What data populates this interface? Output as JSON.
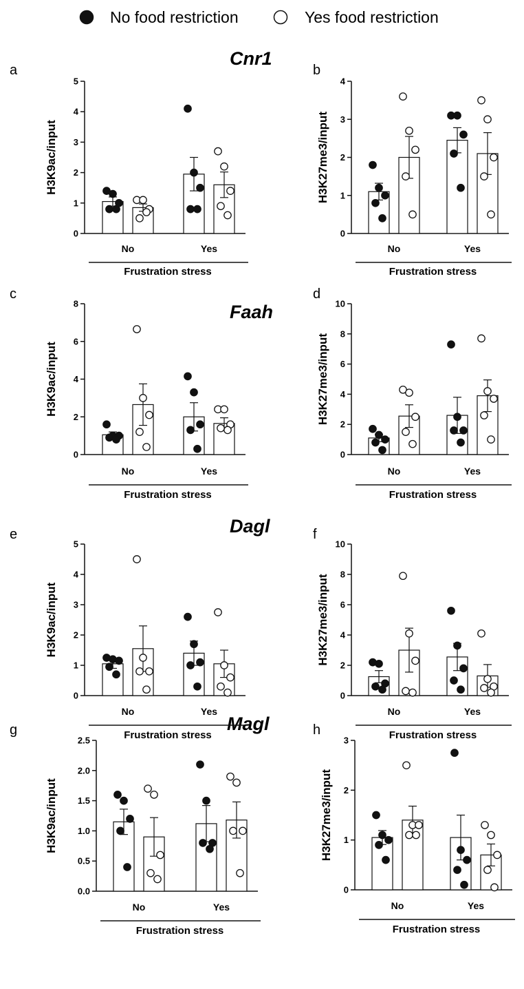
{
  "legend": {
    "no_label": "No food restriction",
    "yes_label": "Yes food restriction"
  },
  "genes": [
    "Cnr1",
    "Faah",
    "Dagl",
    "Magl"
  ],
  "chart_data": [
    {
      "panel": "a",
      "type": "bar",
      "ylabel": "H3K9ac/input",
      "xlabel": "Frustration stress",
      "categories": [
        "No",
        "Yes"
      ],
      "ylim": [
        0,
        5
      ],
      "yticks": [
        "0",
        "1",
        "2",
        "3",
        "4",
        "5"
      ],
      "series": [
        {
          "name": "No food restriction",
          "fill": "filled",
          "means": [
            1.05,
            1.95
          ],
          "sem": [
            0.15,
            0.55
          ],
          "points": [
            [
              1.4,
              1.3,
              1.0,
              0.8,
              0.8
            ],
            [
              4.1,
              2.0,
              1.5,
              0.8,
              0.8
            ]
          ]
        },
        {
          "name": "Yes food restriction",
          "fill": "open",
          "means": [
            0.85,
            1.6
          ],
          "sem": [
            0.12,
            0.42
          ],
          "points": [
            [
              1.1,
              1.1,
              0.8,
              0.5,
              0.7
            ],
            [
              2.7,
              2.2,
              1.4,
              0.9,
              0.6
            ]
          ]
        }
      ]
    },
    {
      "panel": "b",
      "type": "bar",
      "ylabel": "H3K27me3/input",
      "xlabel": "Frustration stress",
      "categories": [
        "No",
        "Yes"
      ],
      "ylim": [
        0,
        4
      ],
      "yticks": [
        "0",
        "1",
        "2",
        "3",
        "4"
      ],
      "series": [
        {
          "name": "No food restriction",
          "fill": "filled",
          "means": [
            1.1,
            2.45
          ],
          "sem": [
            0.22,
            0.33
          ],
          "points": [
            [
              1.8,
              1.2,
              1.0,
              0.8,
              0.4
            ],
            [
              3.1,
              3.1,
              2.6,
              2.1,
              1.2
            ]
          ]
        },
        {
          "name": "Yes food restriction",
          "fill": "open",
          "means": [
            2.0,
            2.1
          ],
          "sem": [
            0.55,
            0.55
          ],
          "points": [
            [
              3.6,
              2.7,
              2.2,
              1.5,
              0.5
            ],
            [
              3.5,
              3.0,
              2.0,
              1.5,
              0.5
            ]
          ]
        }
      ]
    },
    {
      "panel": "c",
      "type": "bar",
      "ylabel": "H3K9ac/input",
      "xlabel": "Frustration stress",
      "categories": [
        "No",
        "Yes"
      ],
      "ylim": [
        0,
        8
      ],
      "yticks": [
        "0",
        "2",
        "4",
        "6",
        "8"
      ],
      "series": [
        {
          "name": "No food restriction",
          "fill": "filled",
          "means": [
            1.05,
            2.0
          ],
          "sem": [
            0.15,
            0.75
          ],
          "points": [
            [
              1.6,
              1.0,
              1.0,
              0.9,
              0.8
            ],
            [
              4.15,
              3.3,
              1.6,
              1.3,
              0.3
            ]
          ]
        },
        {
          "name": "Yes food restriction",
          "fill": "open",
          "means": [
            2.65,
            1.65
          ],
          "sem": [
            1.1,
            0.3
          ],
          "points": [
            [
              6.65,
              3.0,
              2.1,
              1.2,
              0.4
            ],
            [
              2.4,
              2.4,
              1.6,
              1.4,
              1.3
            ]
          ]
        }
      ]
    },
    {
      "panel": "d",
      "type": "bar",
      "ylabel": "H3K27me3/input",
      "xlabel": "Frustration stress",
      "categories": [
        "No",
        "Yes"
      ],
      "ylim": [
        0,
        10
      ],
      "yticks": [
        "0",
        "2",
        "4",
        "6",
        "8",
        "10"
      ],
      "series": [
        {
          "name": "No food restriction",
          "fill": "filled",
          "means": [
            1.1,
            2.6
          ],
          "sem": [
            0.25,
            1.2
          ],
          "points": [
            [
              1.7,
              1.3,
              1.0,
              0.8,
              0.3
            ],
            [
              7.3,
              2.5,
              1.6,
              1.6,
              0.8
            ]
          ]
        },
        {
          "name": "Yes food restriction",
          "fill": "open",
          "means": [
            2.55,
            3.9
          ],
          "sem": [
            0.75,
            1.05
          ],
          "points": [
            [
              4.3,
              4.1,
              2.5,
              1.5,
              0.7
            ],
            [
              7.7,
              4.2,
              3.7,
              2.6,
              1.0
            ]
          ]
        }
      ]
    },
    {
      "panel": "e",
      "type": "bar",
      "ylabel": "H3K9ac/input",
      "xlabel": "Frustration stress",
      "categories": [
        "No",
        "Yes"
      ],
      "ylim": [
        0,
        5
      ],
      "yticks": [
        "0",
        "1",
        "2",
        "3",
        "4",
        "5"
      ],
      "series": [
        {
          "name": "No food restriction",
          "fill": "filled",
          "means": [
            1.05,
            1.4
          ],
          "sem": [
            0.15,
            0.4
          ],
          "points": [
            [
              1.25,
              1.2,
              1.15,
              0.95,
              0.7
            ],
            [
              2.6,
              1.7,
              1.1,
              1.0,
              0.3
            ]
          ]
        },
        {
          "name": "Yes food restriction",
          "fill": "open",
          "means": [
            1.55,
            1.05
          ],
          "sem": [
            0.75,
            0.45
          ],
          "points": [
            [
              4.5,
              1.25,
              0.8,
              0.8,
              0.2
            ],
            [
              2.75,
              1.0,
              0.6,
              0.3,
              0.1
            ]
          ]
        }
      ]
    },
    {
      "panel": "f",
      "type": "bar",
      "ylabel": "H3K27me3/input",
      "xlabel": "Frustration stress",
      "categories": [
        "No",
        "Yes"
      ],
      "ylim": [
        0,
        10
      ],
      "yticks": [
        "0",
        "2",
        "4",
        "6",
        "8",
        "10"
      ],
      "series": [
        {
          "name": "No food restriction",
          "fill": "filled",
          "means": [
            1.25,
            2.55
          ],
          "sem": [
            0.4,
            0.9
          ],
          "points": [
            [
              2.2,
              2.1,
              0.8,
              0.6,
              0.4
            ],
            [
              5.6,
              3.3,
              1.8,
              1.0,
              0.4
            ]
          ]
        },
        {
          "name": "Yes food restriction",
          "fill": "open",
          "means": [
            3.0,
            1.3
          ],
          "sem": [
            1.45,
            0.75
          ],
          "points": [
            [
              7.9,
              4.1,
              2.3,
              0.3,
              0.2
            ],
            [
              4.1,
              1.1,
              0.6,
              0.5,
              0.2
            ]
          ]
        }
      ]
    },
    {
      "panel": "g",
      "type": "bar",
      "ylabel": "H3K9ac/input",
      "xlabel": "Frustration stress",
      "categories": [
        "No",
        "Yes"
      ],
      "ylim": [
        0,
        2.5
      ],
      "yticks": [
        "0.0",
        "0.5",
        "1.0",
        "1.5",
        "2.0",
        "2.5"
      ],
      "series": [
        {
          "name": "No food restriction",
          "fill": "filled",
          "means": [
            1.15,
            1.12
          ],
          "sem": [
            0.21,
            0.3
          ],
          "points": [
            [
              1.6,
              1.5,
              1.2,
              1.0,
              0.4
            ],
            [
              2.1,
              1.5,
              0.8,
              0.8,
              0.7
            ]
          ]
        },
        {
          "name": "Yes food restriction",
          "fill": "open",
          "means": [
            0.9,
            1.18
          ],
          "sem": [
            0.32,
            0.3
          ],
          "points": [
            [
              1.7,
              1.6,
              0.6,
              0.3,
              0.2
            ],
            [
              1.9,
              1.8,
              1.0,
              1.0,
              0.3
            ]
          ]
        }
      ]
    },
    {
      "panel": "h",
      "type": "bar",
      "ylabel": "H3K27me3/input",
      "xlabel": "Frustration stress",
      "categories": [
        "No",
        "Yes"
      ],
      "ylim": [
        0,
        3
      ],
      "yticks": [
        "0",
        "1",
        "2",
        "3"
      ],
      "series": [
        {
          "name": "No food restriction",
          "fill": "filled",
          "means": [
            1.05,
            1.05
          ],
          "sem": [
            0.14,
            0.45
          ],
          "points": [
            [
              1.5,
              1.1,
              1.0,
              0.9,
              0.6
            ],
            [
              2.75,
              0.8,
              0.6,
              0.4,
              0.1
            ]
          ]
        },
        {
          "name": "Yes food restriction",
          "fill": "open",
          "means": [
            1.4,
            0.7
          ],
          "sem": [
            0.28,
            0.22
          ],
          "points": [
            [
              2.5,
              1.3,
              1.3,
              1.1,
              1.1
            ],
            [
              1.3,
              1.1,
              0.7,
              0.4,
              0.05
            ]
          ]
        }
      ]
    }
  ]
}
